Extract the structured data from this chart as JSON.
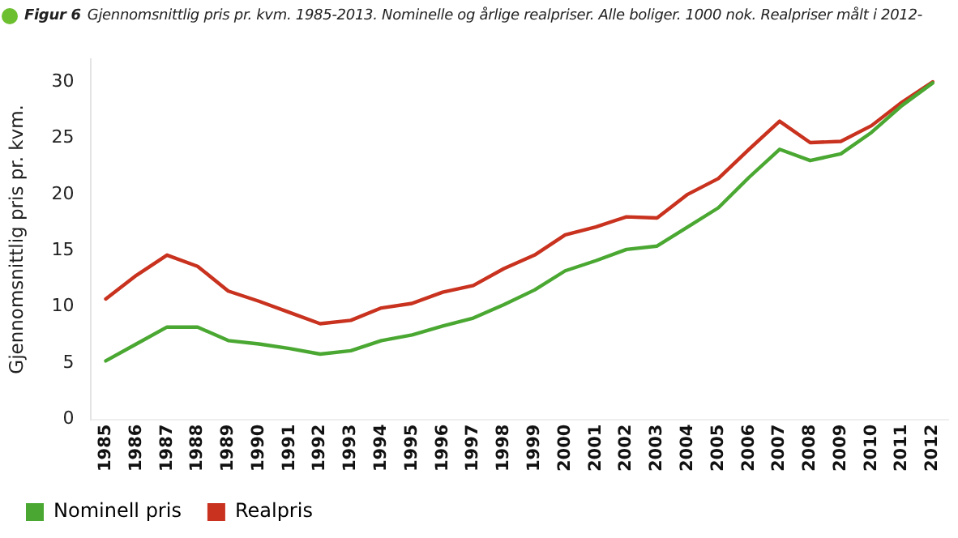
{
  "chart_data": {
    "type": "line",
    "title": "Figur 6",
    "subtitle": "Gjennomsnittlig pris pr. kvm. 1985-2013. Nominelle og årlige realpriser. Alle boliger. 1000 nok. Realpriser målt i 2012-",
    "ylabel": "Gjennomsnittlig pris pr. kvm.",
    "categories": [
      "1985",
      "1986",
      "1987",
      "1988",
      "1989",
      "1990",
      "1991",
      "1992",
      "1993",
      "1994",
      "1995",
      "1996",
      "1997",
      "1998",
      "1999",
      "2000",
      "2001",
      "2002",
      "2003",
      "2004",
      "2005",
      "2006",
      "2007",
      "2008",
      "2009",
      "2010",
      "2011",
      "2012"
    ],
    "series": [
      {
        "name": "Nominell pris",
        "color": "#4aa832",
        "values": [
          5.2,
          6.7,
          8.2,
          8.2,
          7.0,
          6.7,
          6.3,
          5.8,
          6.1,
          7.0,
          7.5,
          8.3,
          9.0,
          10.2,
          11.5,
          13.2,
          14.1,
          15.1,
          15.4,
          17.1,
          18.8,
          21.5,
          24.0,
          23.0,
          23.6,
          25.5,
          27.9,
          29.9
        ]
      },
      {
        "name": "Realpris",
        "color": "#c8321e",
        "values": [
          10.7,
          12.8,
          14.6,
          13.6,
          11.4,
          10.5,
          9.5,
          8.5,
          8.8,
          9.9,
          10.3,
          11.3,
          11.9,
          13.4,
          14.6,
          16.4,
          17.1,
          18.0,
          17.9,
          20.0,
          21.4,
          24.0,
          26.5,
          24.6,
          24.7,
          26.1,
          28.2,
          30.0
        ]
      }
    ],
    "ylim": [
      0,
      32
    ],
    "yticks": [
      0,
      5,
      10,
      15,
      20,
      25,
      30
    ],
    "grid": false,
    "legend": "bottom left",
    "marker": "none",
    "line_style": "solid"
  }
}
